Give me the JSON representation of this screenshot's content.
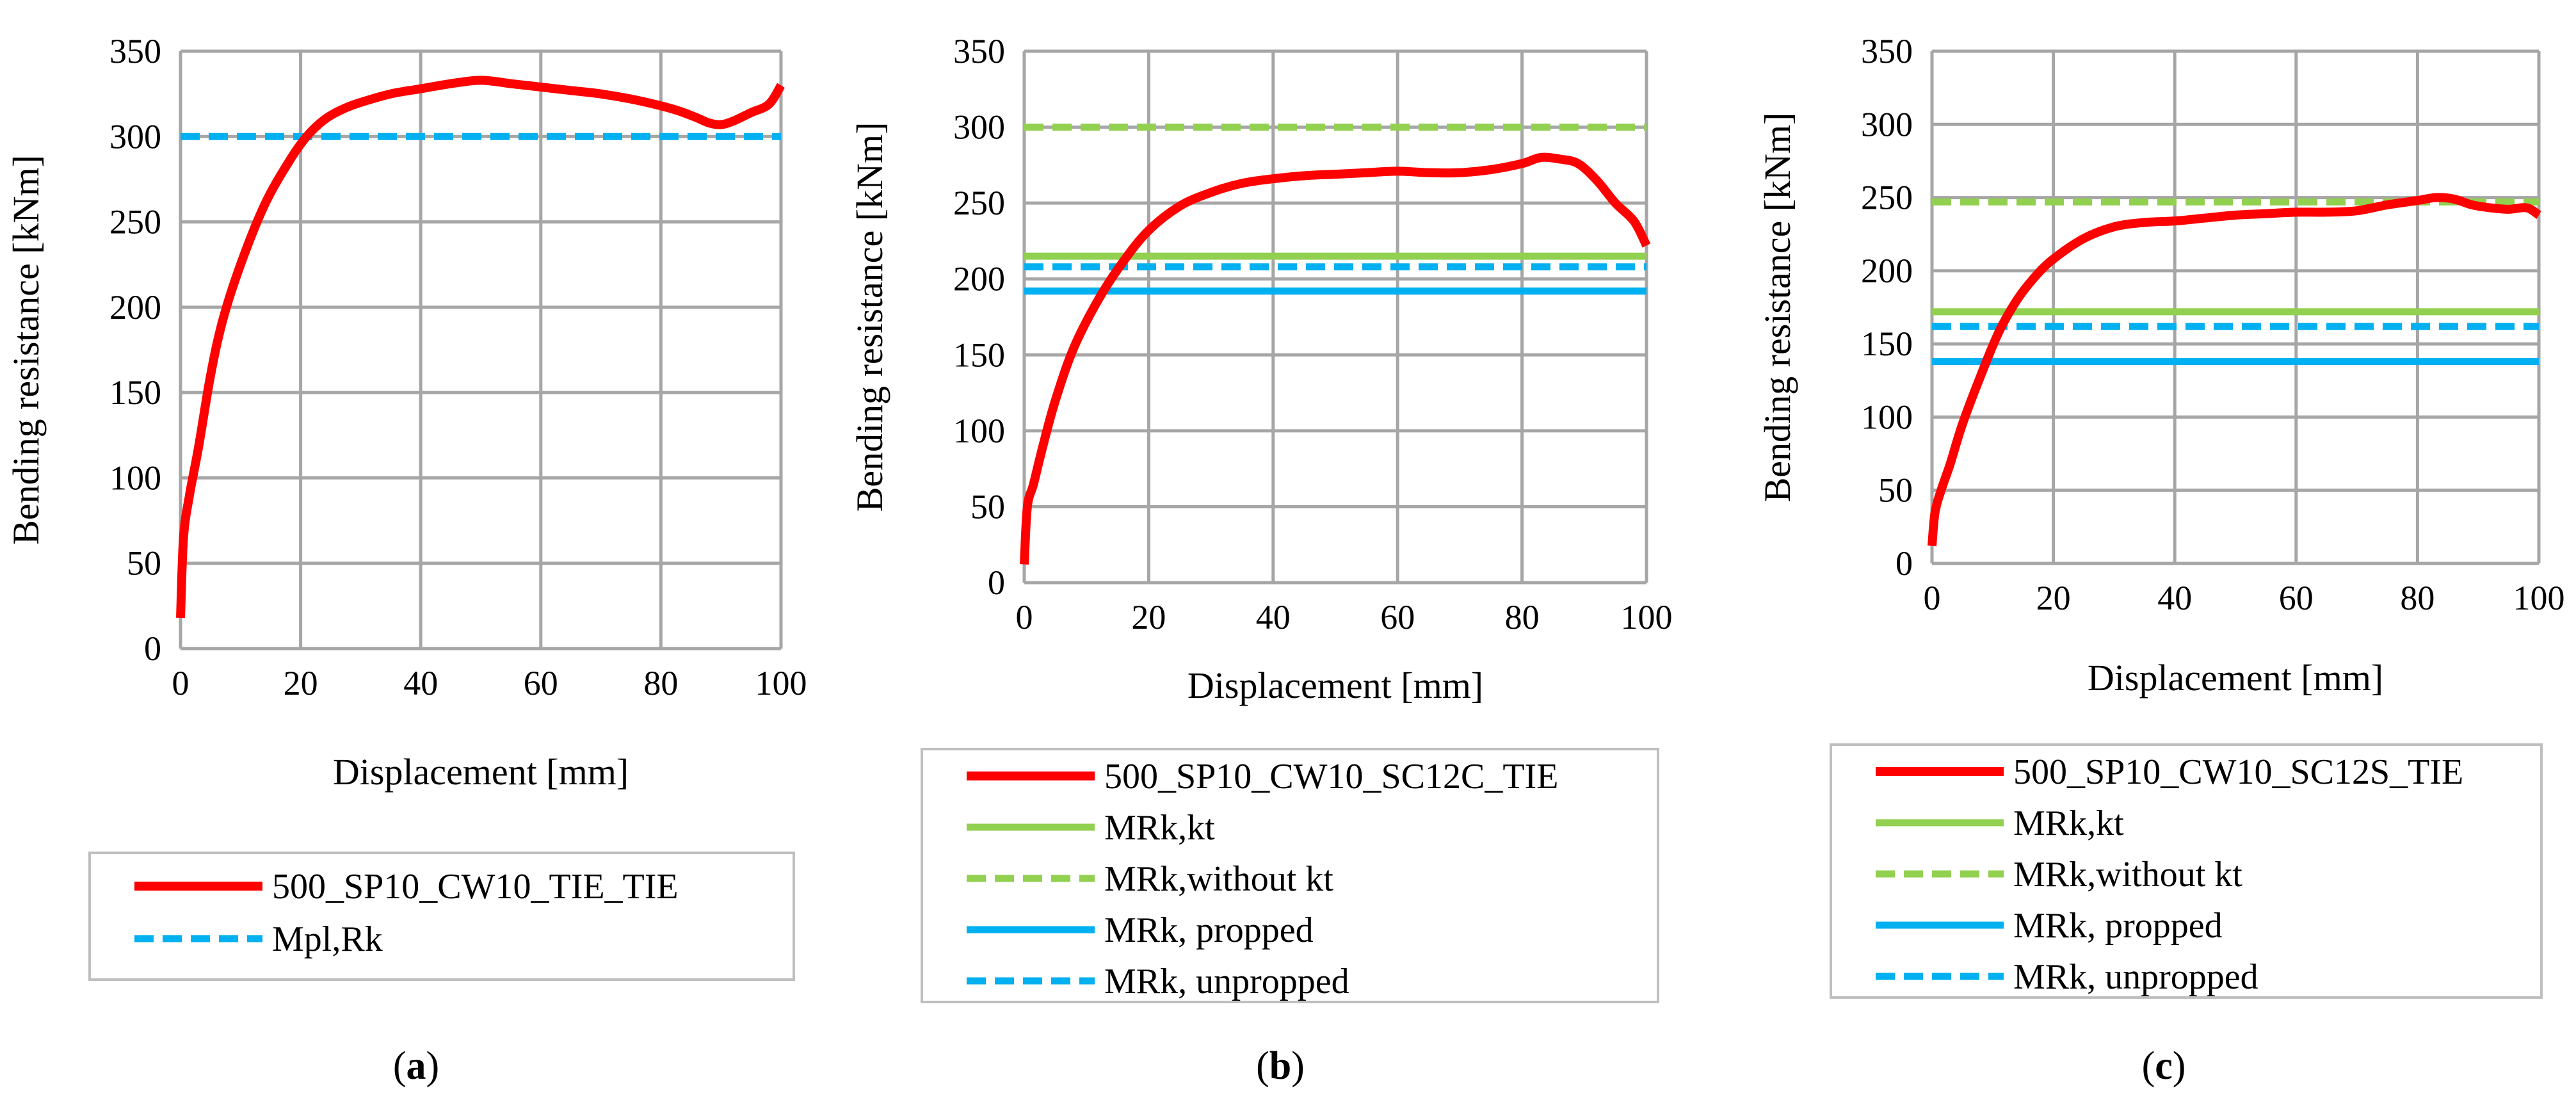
{
  "chart_data": [
    {
      "type": "line",
      "panel_label": "a",
      "xlabel": "Displacement [mm]",
      "ylabel": "Bending resistance [kNm]",
      "xlim": [
        0,
        100
      ],
      "ylim": [
        0,
        350
      ],
      "xticks": [
        0,
        20,
        40,
        60,
        80,
        100
      ],
      "yticks": [
        0,
        50,
        100,
        150,
        200,
        250,
        300,
        350
      ],
      "grid": true,
      "legend_position": "bottom",
      "series": [
        {
          "name": "500_SP10_CW10_TIE_TIE",
          "color": "#ff0000",
          "style": "solid",
          "x": [
            0,
            0.5,
            1.5,
            3,
            5,
            7,
            10,
            14,
            18,
            21,
            24,
            27,
            30,
            35,
            40,
            45,
            50,
            55,
            60,
            65,
            70,
            75,
            80,
            83,
            86,
            88,
            90,
            92,
            95,
            98,
            100
          ],
          "y": [
            18,
            65,
            90,
            118,
            160,
            192,
            225,
            260,
            285,
            300,
            310,
            316,
            320,
            325,
            328,
            331,
            333,
            331,
            329,
            327,
            325,
            322,
            318,
            315,
            311,
            308,
            307,
            309,
            314,
            319,
            330
          ]
        },
        {
          "name": "Mpl,Rk",
          "color": "#00b0f0",
          "style": "dashed",
          "x": [
            0,
            100
          ],
          "y": [
            300,
            300
          ]
        }
      ]
    },
    {
      "type": "line",
      "panel_label": "b",
      "xlabel": "Displacement [mm]",
      "ylabel": "Bending resistance [kNm]",
      "xlim": [
        0,
        100
      ],
      "ylim": [
        0,
        350
      ],
      "xticks": [
        0,
        20,
        40,
        60,
        80,
        100
      ],
      "yticks": [
        0,
        50,
        100,
        150,
        200,
        250,
        300,
        350
      ],
      "grid": true,
      "legend_position": "bottom",
      "series": [
        {
          "name": "500_SP10_CW10_SC12C_TIE",
          "color": "#ff0000",
          "style": "solid",
          "x": [
            0,
            0.5,
            1.5,
            3,
            5,
            8,
            12,
            16,
            20,
            25,
            30,
            35,
            40,
            45,
            50,
            55,
            60,
            65,
            70,
            75,
            80,
            83,
            86,
            89,
            92,
            95,
            98,
            100
          ],
          "y": [
            12,
            50,
            65,
            90,
            120,
            155,
            187,
            212,
            232,
            248,
            257,
            263,
            266,
            268,
            269,
            270,
            271,
            270,
            270,
            272,
            276,
            280,
            279,
            276,
            265,
            250,
            238,
            222
          ]
        },
        {
          "name": "MRk,kt",
          "color": "#92d050",
          "style": "solid",
          "x": [
            0,
            100
          ],
          "y": [
            215,
            215
          ]
        },
        {
          "name": "MRk,without kt",
          "color": "#92d050",
          "style": "dashed",
          "x": [
            0,
            100
          ],
          "y": [
            300,
            300
          ]
        },
        {
          "name": "MRk, propped",
          "color": "#00b0f0",
          "style": "solid",
          "x": [
            0,
            100
          ],
          "y": [
            192,
            192
          ]
        },
        {
          "name": "MRk, unpropped",
          "color": "#00b0f0",
          "style": "dashed",
          "x": [
            0,
            100
          ],
          "y": [
            208,
            208
          ]
        }
      ]
    },
    {
      "type": "line",
      "panel_label": "c",
      "xlabel": "Displacement [mm]",
      "ylabel": "Bending resistance [kNm]",
      "xlim": [
        0,
        100
      ],
      "ylim": [
        0,
        350
      ],
      "xticks": [
        0,
        20,
        40,
        60,
        80,
        100
      ],
      "yticks": [
        0,
        50,
        100,
        150,
        200,
        250,
        300,
        350
      ],
      "grid": true,
      "legend_position": "bottom",
      "series": [
        {
          "name": "500_SP10_CW10_SC12S_TIE",
          "color": "#ff0000",
          "style": "solid",
          "x": [
            0,
            0.5,
            1.5,
            3,
            5,
            8,
            11,
            14,
            17,
            20,
            25,
            30,
            35,
            40,
            45,
            50,
            55,
            60,
            65,
            70,
            75,
            80,
            83,
            86,
            89,
            92,
            95,
            98,
            100
          ],
          "y": [
            12,
            35,
            50,
            68,
            95,
            128,
            158,
            180,
            196,
            208,
            222,
            230,
            233,
            234,
            236,
            238,
            239,
            240,
            240,
            241,
            245,
            248,
            250,
            249,
            245,
            243,
            242,
            243,
            238
          ]
        },
        {
          "name": "MRk,kt",
          "color": "#92d050",
          "style": "solid",
          "x": [
            0,
            100
          ],
          "y": [
            172,
            172
          ]
        },
        {
          "name": "MRk,without kt",
          "color": "#92d050",
          "style": "dashed",
          "x": [
            0,
            100
          ],
          "y": [
            247,
            247
          ]
        },
        {
          "name": "MRk, propped",
          "color": "#00b0f0",
          "style": "solid",
          "x": [
            0,
            100
          ],
          "y": [
            138,
            138
          ]
        },
        {
          "name": "MRk, unpropped",
          "color": "#00b0f0",
          "style": "dashed",
          "x": [
            0,
            100
          ],
          "y": [
            162,
            162
          ]
        }
      ]
    }
  ],
  "captions": [
    "(a)",
    "(b)",
    "(c)"
  ]
}
